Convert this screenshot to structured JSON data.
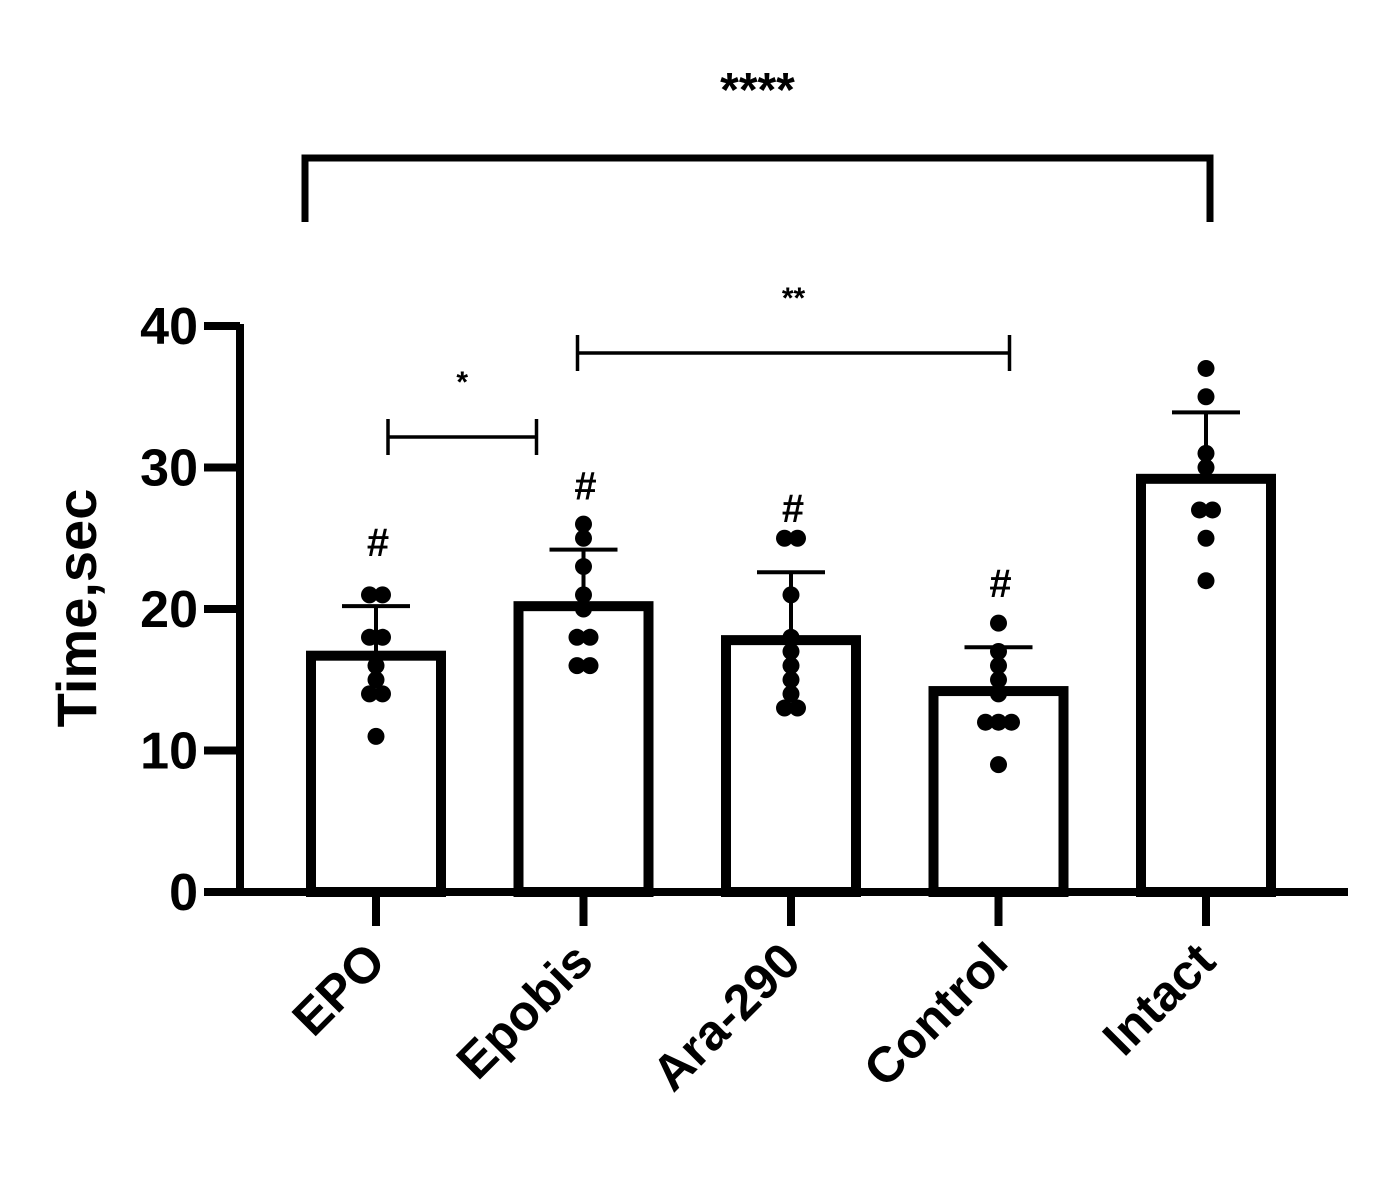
{
  "chart_data": {
    "type": "bar",
    "title": "",
    "xlabel": "",
    "ylabel": "Time,sec",
    "ylim": [
      0,
      40
    ],
    "yticks": [
      "0",
      "10",
      "20",
      "30",
      "40"
    ],
    "categories": [
      "EPO",
      "Epobis",
      "Ara-290",
      "Control",
      "Intact"
    ],
    "values": [
      16.7,
      20.2,
      17.8,
      14.2,
      29.2
    ],
    "errors": [
      3.5,
      4.0,
      4.8,
      3.1,
      4.7
    ],
    "points": [
      [
        21,
        21,
        18,
        18,
        16,
        15,
        14,
        14,
        11
      ],
      [
        26,
        25,
        23,
        21,
        20,
        18,
        18,
        16,
        16
      ],
      [
        25,
        25,
        21,
        18,
        17,
        16,
        15,
        14,
        13,
        13
      ],
      [
        19,
        17,
        16,
        15,
        14,
        12,
        12,
        12,
        9
      ],
      [
        37,
        35,
        31,
        30,
        27,
        27,
        25,
        22
      ]
    ],
    "group_markers": [
      "#",
      "#",
      "#",
      "#",
      ""
    ],
    "comparisons": [
      {
        "from": 0,
        "to": 4,
        "label": "****"
      },
      {
        "from": 0,
        "to": 1,
        "label": "*"
      },
      {
        "from": 1,
        "to": 3,
        "label": "**"
      }
    ],
    "grid": false,
    "legend": "none",
    "colors": {
      "bar_fill": "#ffffff",
      "stroke": "#000000",
      "point": "#000000"
    }
  }
}
